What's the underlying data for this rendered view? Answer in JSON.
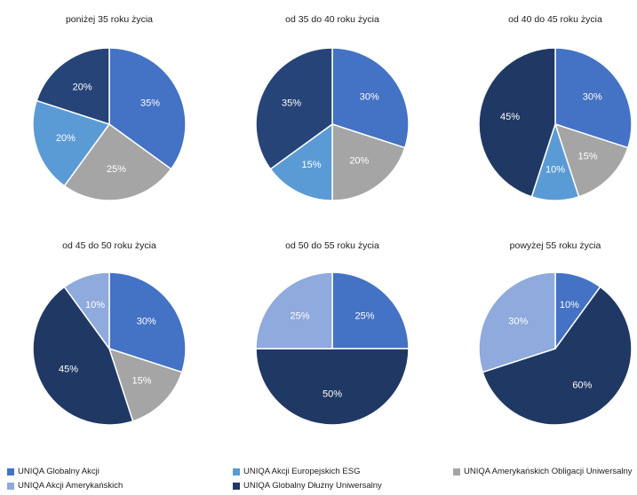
{
  "colors": {
    "UNIQA Globalny Akcji": "#4472c4",
    "UNIQA Akcji Europejskich ESG": "#5b9bd5",
    "UNIQA Amerykańskich Obligacji Uniwersalny": "#a5a5a5",
    "UNIQA Akcji Amerykańskich": "#8faadc",
    "UNIQA Globalny Dłużny Uniwersalny": "#203864",
    "dark_20_35": "#264478"
  },
  "legend": [
    "UNIQA Globalny Akcji",
    "UNIQA Akcji Europejskich ESG",
    "UNIQA Amerykańskich Obligacji Uniwersalny",
    "UNIQA Akcji Amerykańskich",
    "UNIQA Globalny Dłużny Uniwersalny"
  ],
  "chart_data": [
    {
      "type": "pie",
      "title": "poniżej 35 roku życia",
      "slices": [
        {
          "name": "UNIQA Globalny Akcji",
          "value": 35,
          "label": "35%"
        },
        {
          "name": "UNIQA Amerykańskich Obligacji Uniwersalny",
          "value": 25,
          "label": "25%"
        },
        {
          "name": "UNIQA Akcji Europejskich ESG",
          "value": 20,
          "label": "20%"
        },
        {
          "name": "dark_20_35",
          "value": 20,
          "label": "20%"
        }
      ]
    },
    {
      "type": "pie",
      "title": "od 35 do 40 roku życia",
      "slices": [
        {
          "name": "UNIQA Globalny Akcji",
          "value": 30,
          "label": "30%"
        },
        {
          "name": "UNIQA Amerykańskich Obligacji Uniwersalny",
          "value": 20,
          "label": "20%"
        },
        {
          "name": "UNIQA Akcji Europejskich ESG",
          "value": 15,
          "label": "15%"
        },
        {
          "name": "dark_20_35",
          "value": 35,
          "label": "35%"
        }
      ]
    },
    {
      "type": "pie",
      "title": "od 40 do 45 roku życia",
      "slices": [
        {
          "name": "UNIQA Globalny Akcji",
          "value": 30,
          "label": "30%"
        },
        {
          "name": "UNIQA Amerykańskich Obligacji Uniwersalny",
          "value": 15,
          "label": "15%"
        },
        {
          "name": "UNIQA Akcji Europejskich ESG",
          "value": 10,
          "label": "10%"
        },
        {
          "name": "UNIQA Globalny Dłużny Uniwersalny",
          "value": 45,
          "label": "45%"
        }
      ]
    },
    {
      "type": "pie",
      "title": "od 45 do 50 roku życia",
      "slices": [
        {
          "name": "UNIQA Globalny Akcji",
          "value": 30,
          "label": "30%"
        },
        {
          "name": "UNIQA Amerykańskich Obligacji Uniwersalny",
          "value": 15,
          "label": "15%"
        },
        {
          "name": "UNIQA Globalny Dłużny Uniwersalny",
          "value": 45,
          "label": "45%"
        },
        {
          "name": "UNIQA Akcji Amerykańskich",
          "value": 10,
          "label": "10%"
        }
      ]
    },
    {
      "type": "pie",
      "title": "od 50 do 55 roku życia",
      "slices": [
        {
          "name": "UNIQA Globalny Akcji",
          "value": 25,
          "label": "25%"
        },
        {
          "name": "UNIQA Globalny Dłużny Uniwersalny",
          "value": 50,
          "label": "50%"
        },
        {
          "name": "UNIQA Akcji Amerykańskich",
          "value": 25,
          "label": "25%"
        }
      ]
    },
    {
      "type": "pie",
      "title": "powyżej 55 roku życia",
      "slices": [
        {
          "name": "UNIQA Globalny Akcji",
          "value": 10,
          "label": "10%"
        },
        {
          "name": "UNIQA Globalny Dłużny Uniwersalny",
          "value": 60,
          "label": "60%"
        },
        {
          "name": "UNIQA Akcji Amerykańskich",
          "value": 30,
          "label": "30%"
        }
      ]
    }
  ]
}
